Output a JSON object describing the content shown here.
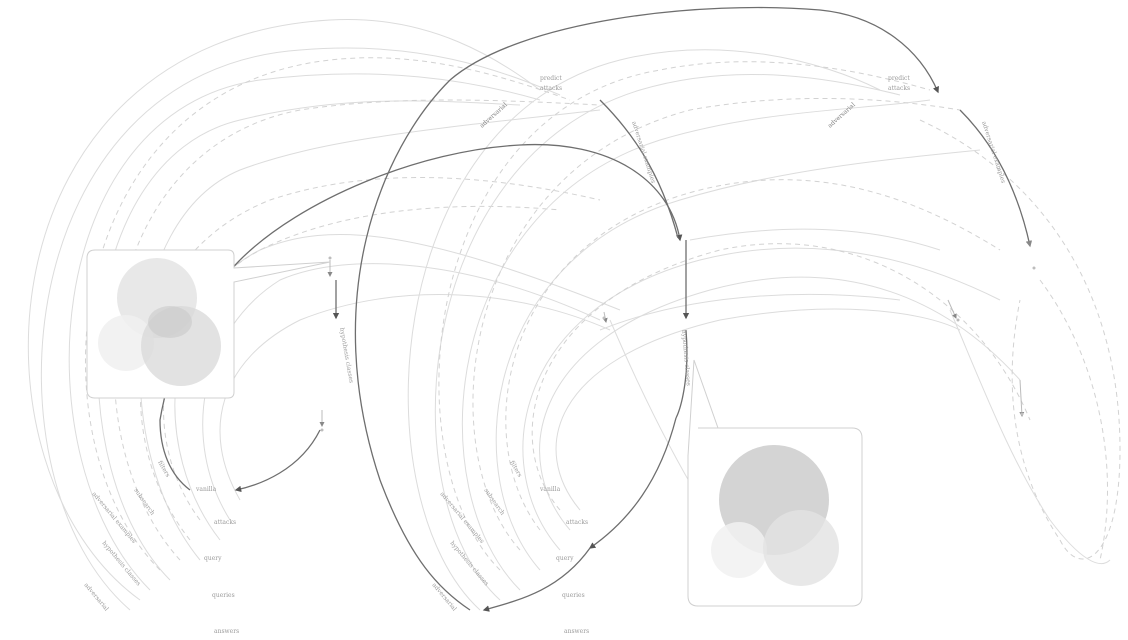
{
  "diagram": {
    "left_group": {
      "top_labels": [
        "predict",
        "attacks"
      ],
      "leaf_labels": [
        "vanilla",
        "attacks",
        "query",
        "queries",
        "answers"
      ],
      "branch_labels": [
        "filters",
        "subsearch",
        "adversarial examples",
        "hypothesis classes",
        "adversarial"
      ]
    },
    "right_group": {
      "top_labels": [
        "predict",
        "attacks"
      ],
      "leaf_labels": [
        "vanilla",
        "attacks",
        "query",
        "queries",
        "answers"
      ],
      "branch_labels": [
        "filters",
        "subsearch",
        "adversarial examples",
        "hypothesis classes",
        "adversarial"
      ]
    },
    "colors": {
      "faint_line": "#d9d9d9",
      "dashed_line": "#cfcfcf",
      "dark_line": "#6e6e6e",
      "circle_light": "#e6e6e6",
      "circle_mid": "#cfcfcf",
      "callout_border": "#d0d0d0"
    }
  }
}
